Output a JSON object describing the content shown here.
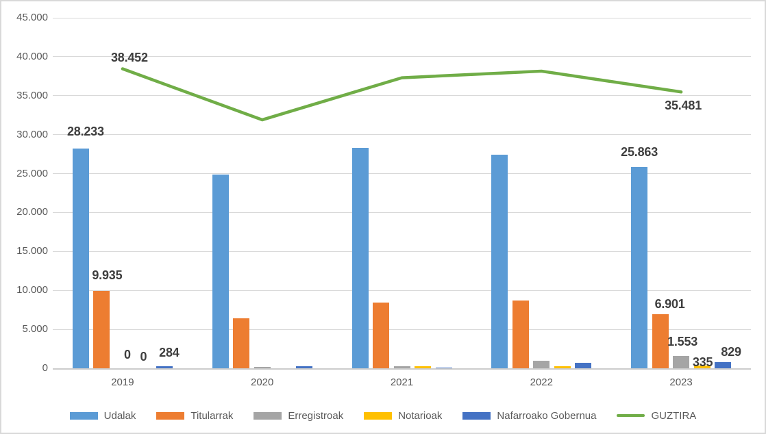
{
  "chart_data": {
    "type": "bar",
    "subtype": "grouped-column-with-line-overlay",
    "title": "",
    "categories": [
      "2019",
      "2020",
      "2021",
      "2022",
      "2023"
    ],
    "series": [
      {
        "name": "Udalak",
        "kind": "bar",
        "color": "#5B9BD5",
        "values": [
          28233,
          24900,
          28300,
          27450,
          25863
        ],
        "labels": [
          {
            "text": "28.233",
            "dx": 7,
            "dy": -10
          },
          null,
          null,
          null,
          {
            "text": "25.863",
            "dx": 0,
            "dy": -7
          }
        ]
      },
      {
        "name": "Titularrak",
        "kind": "bar",
        "color": "#ED7D31",
        "values": [
          9935,
          6400,
          8400,
          8740,
          6901
        ],
        "labels": [
          {
            "text": "9.935",
            "dx": 8,
            "dy": -8
          },
          null,
          null,
          null,
          {
            "text": "6.901",
            "dx": 14,
            "dy": 0
          }
        ]
      },
      {
        "name": "Erregistroak",
        "kind": "bar",
        "color": "#A5A5A5",
        "values": [
          0,
          150,
          250,
          980,
          1553
        ],
        "labels": [
          {
            "text": "0",
            "dx": 7,
            "dy": -5
          },
          null,
          null,
          null,
          {
            "text": "1.553",
            "dx": 2,
            "dy": -6
          }
        ]
      },
      {
        "name": "Notarioak",
        "kind": "bar",
        "color": "#FFC000",
        "values": [
          0,
          0,
          240,
          270,
          335
        ],
        "labels": [
          {
            "text": "0",
            "dx": 0,
            "dy": -2
          },
          null,
          null,
          null,
          {
            "text": "335",
            "dx": 1,
            "dy": 10
          }
        ]
      },
      {
        "name": "Nafarroako Gobernua",
        "kind": "bar",
        "color": "#4472C4",
        "values": [
          284,
          250,
          130,
          720,
          829
        ],
        "labels": [
          {
            "text": "284",
            "dx": 7,
            "dy": -5
          },
          null,
          null,
          null,
          {
            "text": "829",
            "dx": 12,
            "dy": 0
          }
        ]
      },
      {
        "name": "GUZTIRA",
        "kind": "line",
        "color": "#70AD47",
        "values": [
          38452,
          31900,
          37300,
          38150,
          35481
        ],
        "labels": [
          {
            "text": "38.452",
            "dx": 10,
            "dy": 0,
            "pos": "above"
          },
          null,
          null,
          null,
          {
            "text": "35.481",
            "dx": 3,
            "dy": 0,
            "pos": "below"
          }
        ]
      }
    ],
    "y_axis": {
      "min": 0,
      "max": 45000,
      "step": 5000,
      "tick_labels": [
        "0",
        "5.000",
        "10.000",
        "15.000",
        "20.000",
        "25.000",
        "30.000",
        "35.000",
        "40.000",
        "45.000"
      ]
    },
    "grid": true,
    "legend_position": "bottom",
    "style": {
      "grid_color": "#D9D9D9",
      "axis_label_color": "#595959",
      "data_label_color": "#3E3E3E",
      "background": "#FFFFFF",
      "border_color": "#D9D9D9"
    }
  }
}
